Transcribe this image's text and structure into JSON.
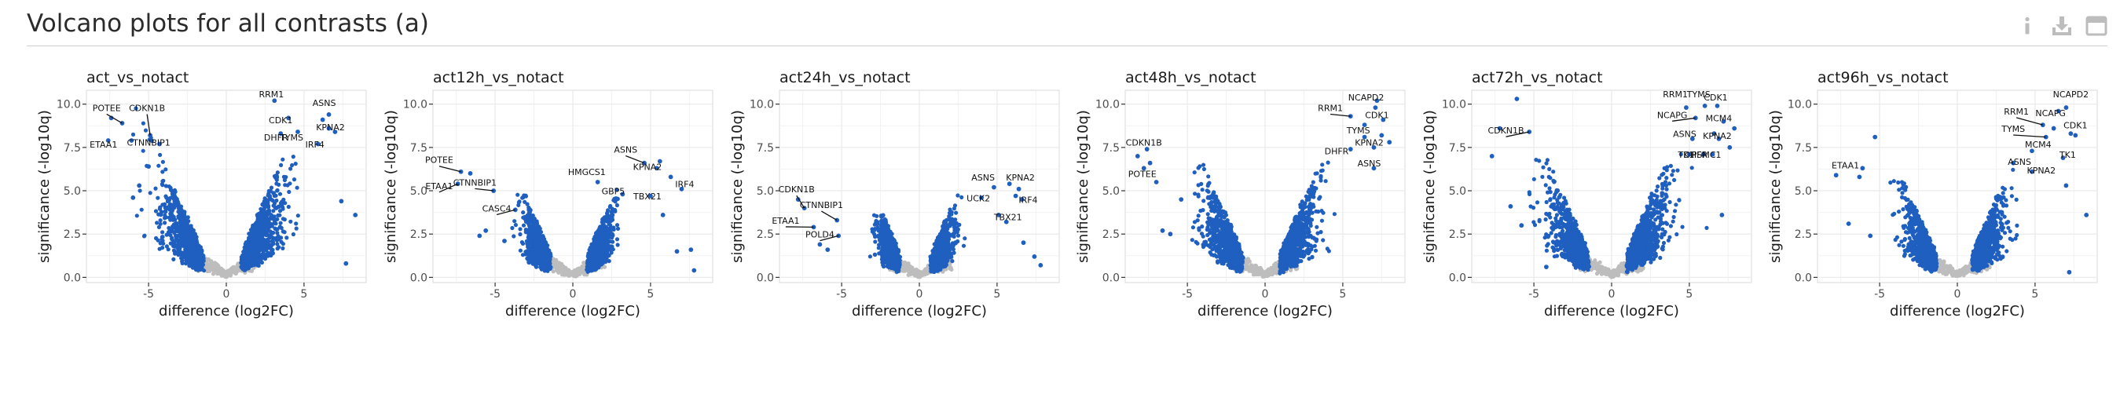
{
  "page": {
    "title": "Volcano plots for all contrasts (a)"
  },
  "toolbar": {
    "icons": [
      "info-icon",
      "download-icon",
      "maximize-icon"
    ],
    "icon_color": "#bdbdbd"
  },
  "colors": {
    "significant": "#1f5fbf",
    "non_significant": "#bdbdbd",
    "grid": "#ebebeb",
    "axis_text": "#4d4d4d"
  },
  "chart_data": [
    {
      "type": "scatter",
      "title": "act_vs_notact",
      "xlabel": "difference  (log2FC)",
      "ylabel": "significance  (-log10q)",
      "xlim": [
        -9,
        9
      ],
      "ylim": [
        -0.3,
        10.8
      ],
      "xticks": [
        -5,
        0,
        5
      ],
      "yticks": [
        0.0,
        2.5,
        5.0,
        7.5,
        10.0
      ],
      "xtick_labels": [
        "-5",
        "0",
        "5"
      ],
      "ytick_labels": [
        "0.0",
        "2.5",
        "5.0",
        "7.5",
        "10.0"
      ],
      "spread": 1.0,
      "hi_left": 10.1,
      "hi_right": 10.0,
      "lmin": -1.4,
      "rmin": 0.9,
      "labels": [
        {
          "text": "POTEE",
          "x": -6.7,
          "y": 8.9,
          "ax": -7.7,
          "ay": 9.6
        },
        {
          "text": "CDKN1B",
          "x": -4.9,
          "y": 8.2,
          "ax": -5.1,
          "ay": 9.6
        },
        {
          "text": "ETAA1",
          "x": -7.6,
          "y": 7.9,
          "ax": -7.9,
          "ay": 7.5
        },
        {
          "text": "CTNNBIP1",
          "x": -4.3,
          "y": 7.7,
          "ax": -5.0,
          "ay": 7.6
        },
        {
          "text": "RRM1",
          "x": 3.1,
          "y": 10.2,
          "ax": 2.9,
          "ay": 10.4
        },
        {
          "text": "ASNS",
          "x": 6.2,
          "y": 9.1,
          "ax": 6.3,
          "ay": 9.9
        },
        {
          "text": "CDK1",
          "x": 4.0,
          "y": 9.2,
          "ax": 3.5,
          "ay": 8.9
        },
        {
          "text": "DHFR",
          "x": 3.5,
          "y": 8.3,
          "ax": 3.2,
          "ay": 7.9
        },
        {
          "text": "TYMS",
          "x": 4.6,
          "y": 8.4,
          "ax": 4.2,
          "ay": 7.9
        },
        {
          "text": "KPNA2",
          "x": 6.6,
          "y": 8.6,
          "ax": 6.7,
          "ay": 8.5
        },
        {
          "text": "IRF4",
          "x": 5.9,
          "y": 7.7,
          "ax": 5.7,
          "ay": 7.5
        }
      ],
      "extras": [
        [
          -7.4,
          9.2
        ],
        [
          -6.1,
          7.9
        ],
        [
          -5.6,
          5.3
        ],
        [
          -6.0,
          4.6
        ],
        [
          -5.0,
          6.4
        ],
        [
          7.4,
          4.4
        ],
        [
          7.7,
          0.8
        ],
        [
          8.3,
          3.6
        ],
        [
          7.0,
          8.4
        ],
        [
          6.6,
          9.4
        ]
      ]
    },
    {
      "type": "scatter",
      "title": "act12h_vs_notact",
      "xlabel": "difference  (log2FC)",
      "ylabel": "significance  (-log10q)",
      "xlim": [
        -9,
        9
      ],
      "ylim": [
        -0.3,
        10.8
      ],
      "xticks": [
        -5,
        0,
        5
      ],
      "yticks": [
        0.0,
        2.5,
        5.0,
        7.5,
        10.0
      ],
      "xtick_labels": [
        "-5",
        "0",
        "5"
      ],
      "ytick_labels": [
        "0.0",
        "2.5",
        "5.0",
        "7.5",
        "10.0"
      ],
      "spread": 0.55,
      "hi_left": 4.8,
      "hi_right": 6.3,
      "lmin": -1.4,
      "rmin": 0.9,
      "labels": [
        {
          "text": "POTEE",
          "x": -7.2,
          "y": 6.1,
          "ax": -8.6,
          "ay": 6.6
        },
        {
          "text": "ETAA1",
          "x": -7.4,
          "y": 5.4,
          "ax": -8.6,
          "ay": 5.1
        },
        {
          "text": "CTNNBIP1",
          "x": -5.1,
          "y": 5.0,
          "ax": -6.3,
          "ay": 5.3
        },
        {
          "text": "CASC4",
          "x": -3.7,
          "y": 3.9,
          "ax": -4.9,
          "ay": 3.8
        },
        {
          "text": "HMGCS1",
          "x": 1.6,
          "y": 5.5,
          "ax": 0.9,
          "ay": 5.9
        },
        {
          "text": "ASNS",
          "x": 4.6,
          "y": 6.6,
          "ax": 3.4,
          "ay": 7.2
        },
        {
          "text": "KPNA2",
          "x": 5.4,
          "y": 6.3,
          "ax": 4.8,
          "ay": 6.2
        },
        {
          "text": "IRF4",
          "x": 7.0,
          "y": 5.1,
          "ax": 7.2,
          "ay": 5.2
        },
        {
          "text": "GBP5",
          "x": 3.2,
          "y": 4.8,
          "ax": 2.6,
          "ay": 4.8
        },
        {
          "text": "TBX21",
          "x": 5.0,
          "y": 4.7,
          "ax": 4.8,
          "ay": 4.5
        }
      ],
      "extras": [
        [
          -6.6,
          6.0
        ],
        [
          -5.6,
          2.7
        ],
        [
          -6.0,
          2.4
        ],
        [
          -4.4,
          2.1
        ],
        [
          5.6,
          6.7
        ],
        [
          6.3,
          5.8
        ],
        [
          6.7,
          1.5
        ],
        [
          7.6,
          1.6
        ],
        [
          5.8,
          3.6
        ],
        [
          7.8,
          0.4
        ]
      ]
    },
    {
      "type": "scatter",
      "title": "act24h_vs_notact",
      "xlabel": "difference  (log2FC)",
      "ylabel": "significance  (-log10q)",
      "xlim": [
        -9,
        9
      ],
      "ylim": [
        -0.3,
        10.8
      ],
      "xticks": [
        -5,
        0,
        5
      ],
      "yticks": [
        0.0,
        2.5,
        5.0,
        7.5,
        10.0
      ],
      "xtick_labels": [
        "-5",
        "0",
        "5"
      ],
      "ytick_labels": [
        "0.0",
        "2.5",
        "5.0",
        "7.5",
        "10.0"
      ],
      "spread": 0.45,
      "hi_left": 3.6,
      "hi_right": 5.6,
      "lmin": -1.2,
      "rmin": 0.7,
      "labels": [
        {
          "text": "CDKN1B",
          "x": -7.4,
          "y": 4.0,
          "ax": -7.9,
          "ay": 4.9
        },
        {
          "text": "CTNNBIP1",
          "x": -5.3,
          "y": 3.3,
          "ax": -6.3,
          "ay": 4.0
        },
        {
          "text": "ETAA1",
          "x": -6.8,
          "y": 2.9,
          "ax": -8.6,
          "ay": 3.1
        },
        {
          "text": "POLD4",
          "x": -5.2,
          "y": 2.4,
          "ax": -6.4,
          "ay": 2.3
        },
        {
          "text": "ASNS",
          "x": 4.8,
          "y": 5.2,
          "ax": 4.1,
          "ay": 5.6
        },
        {
          "text": "KPNA2",
          "x": 6.4,
          "y": 5.1,
          "ax": 6.5,
          "ay": 5.6
        },
        {
          "text": "UCK2",
          "x": 4.0,
          "y": 4.6,
          "ax": 3.8,
          "ay": 4.4
        },
        {
          "text": "IRF4",
          "x": 6.6,
          "y": 4.5,
          "ax": 7.0,
          "ay": 4.3
        },
        {
          "text": "TBX21",
          "x": 5.6,
          "y": 3.2,
          "ax": 5.7,
          "ay": 3.3
        }
      ],
      "extras": [
        [
          -7.8,
          4.5
        ],
        [
          -6.4,
          1.9
        ],
        [
          -5.9,
          1.6
        ],
        [
          5.8,
          5.4
        ],
        [
          6.2,
          4.7
        ],
        [
          6.7,
          2.0
        ],
        [
          7.4,
          1.2
        ],
        [
          7.8,
          0.7
        ],
        [
          5.1,
          3.6
        ]
      ]
    },
    {
      "type": "scatter",
      "title": "act48h_vs_notact",
      "xlabel": "difference  (log2FC)",
      "ylabel": "significance  (-log10q)",
      "xlim": [
        -9,
        9
      ],
      "ylim": [
        -0.3,
        10.8
      ],
      "xticks": [
        -5,
        0,
        5
      ],
      "yticks": [
        0.0,
        2.5,
        5.0,
        7.5,
        10.0
      ],
      "xtick_labels": [
        "-5",
        "0",
        "5"
      ],
      "ytick_labels": [
        "0.0",
        "2.5",
        "5.0",
        "7.5",
        "10.0"
      ],
      "spread": 0.85,
      "hi_left": 7.0,
      "hi_right": 9.0,
      "lmin": -1.4,
      "rmin": 0.9,
      "labels": [
        {
          "text": "NCAPD2",
          "x": 7.2,
          "y": 10.2,
          "ax": 6.5,
          "ay": 10.2
        },
        {
          "text": "CDK1",
          "x": 7.6,
          "y": 9.1,
          "ax": 7.2,
          "ay": 9.2
        },
        {
          "text": "RRM1",
          "x": 5.5,
          "y": 9.3,
          "ax": 4.2,
          "ay": 9.6
        },
        {
          "text": "TYMS",
          "x": 6.4,
          "y": 8.1,
          "ax": 6.0,
          "ay": 8.3
        },
        {
          "text": "KPNA2",
          "x": 7.0,
          "y": 7.5,
          "ax": 6.7,
          "ay": 7.6
        },
        {
          "text": "DHFR",
          "x": 5.5,
          "y": 7.4,
          "ax": 4.6,
          "ay": 7.1
        },
        {
          "text": "ASNS",
          "x": 7.0,
          "y": 6.3,
          "ax": 6.7,
          "ay": 6.4
        },
        {
          "text": "CDKN1B",
          "x": -7.6,
          "y": 7.4,
          "ax": -7.8,
          "ay": 7.6
        },
        {
          "text": "POTEE",
          "x": -7.8,
          "y": 6.3,
          "ax": -7.9,
          "ay": 5.8
        }
      ],
      "extras": [
        [
          -7.4,
          6.6
        ],
        [
          -8.2,
          7.0
        ],
        [
          -6.6,
          2.7
        ],
        [
          -6.1,
          2.5
        ],
        [
          -5.4,
          4.5
        ],
        [
          -7.0,
          5.5
        ],
        [
          7.5,
          8.2
        ],
        [
          8.0,
          7.8
        ],
        [
          7.1,
          9.8
        ],
        [
          6.4,
          8.8
        ]
      ]
    },
    {
      "type": "scatter",
      "title": "act72h_vs_notact",
      "xlabel": "difference  (log2FC)",
      "ylabel": "significance  (-log10q)",
      "xlim": [
        -9,
        9
      ],
      "ylim": [
        -0.3,
        10.8
      ],
      "xticks": [
        -5,
        0,
        5
      ],
      "yticks": [
        0.0,
        2.5,
        5.0,
        7.5,
        10.0
      ],
      "xtick_labels": [
        "-5",
        "0",
        "5"
      ],
      "ytick_labels": [
        "0.0",
        "2.5",
        "5.0",
        "7.5",
        "10.0"
      ],
      "spread": 0.95,
      "hi_left": 8.3,
      "hi_right": 9.6,
      "lmin": -1.4,
      "rmin": 0.9,
      "labels": [
        {
          "text": "CDKN1B",
          "x": -5.3,
          "y": 8.4,
          "ax": -6.8,
          "ay": 8.3
        },
        {
          "text": "RRM1",
          "x": 4.8,
          "y": 9.8,
          "ax": 4.1,
          "ay": 10.4
        },
        {
          "text": "TYMS",
          "x": 6.0,
          "y": 9.9,
          "ax": 5.6,
          "ay": 10.4
        },
        {
          "text": "CDK1",
          "x": 6.8,
          "y": 9.9,
          "ax": 6.7,
          "ay": 10.2
        },
        {
          "text": "NCAPG",
          "x": 5.4,
          "y": 9.2,
          "ax": 3.9,
          "ay": 9.2
        },
        {
          "text": "MCM4",
          "x": 7.2,
          "y": 9.0,
          "ax": 6.9,
          "ay": 9.0
        },
        {
          "text": "ASNS",
          "x": 5.2,
          "y": 8.0,
          "ax": 4.7,
          "ay": 8.1
        },
        {
          "text": "KPNA2",
          "x": 6.9,
          "y": 8.0,
          "ax": 6.8,
          "ay": 8.0
        },
        {
          "text": "TK1",
          "x": 5.0,
          "y": 7.1,
          "ax": 4.8,
          "ay": 6.9
        },
        {
          "text": "DHFR",
          "x": 5.9,
          "y": 7.1,
          "ax": 5.4,
          "ay": 6.9
        },
        {
          "text": "PSMC1",
          "x": 6.5,
          "y": 7.1,
          "ax": 6.1,
          "ay": 6.9
        }
      ],
      "extras": [
        [
          -6.1,
          10.3
        ],
        [
          -7.2,
          8.6
        ],
        [
          -7.7,
          7.0
        ],
        [
          -6.5,
          4.1
        ],
        [
          -5.8,
          3.0
        ],
        [
          -4.2,
          0.6
        ],
        [
          7.6,
          7.5
        ],
        [
          7.1,
          3.6
        ],
        [
          7.9,
          8.6
        ],
        [
          6.6,
          8.3
        ]
      ]
    },
    {
      "type": "scatter",
      "title": "act96h_vs_notact",
      "xlabel": "difference  (log2FC)",
      "ylabel": "significance  (-log10q)",
      "xlim": [
        -9,
        9
      ],
      "ylim": [
        -0.3,
        10.8
      ],
      "xticks": [
        -5,
        0,
        5
      ],
      "yticks": [
        0.0,
        2.5,
        5.0,
        7.5,
        10.0
      ],
      "xtick_labels": [
        "-5",
        "0",
        "5"
      ],
      "ytick_labels": [
        "0.0",
        "2.5",
        "5.0",
        "7.5",
        "10.0"
      ],
      "spread": 0.7,
      "hi_left": 6.5,
      "hi_right": 8.6,
      "lmin": -1.3,
      "rmin": 0.9,
      "labels": [
        {
          "text": "NCAPD2",
          "x": 7.0,
          "y": 9.8,
          "ax": 7.3,
          "ay": 10.4
        },
        {
          "text": "RRM1",
          "x": 5.5,
          "y": 8.8,
          "ax": 3.8,
          "ay": 9.4
        },
        {
          "text": "NCAPG",
          "x": 6.2,
          "y": 8.6,
          "ax": 6.0,
          "ay": 9.3
        },
        {
          "text": "TYMS",
          "x": 5.7,
          "y": 8.1,
          "ax": 3.6,
          "ay": 8.4
        },
        {
          "text": "CDK1",
          "x": 7.3,
          "y": 8.3,
          "ax": 7.6,
          "ay": 8.6
        },
        {
          "text": "MCM4",
          "x": 4.8,
          "y": 7.3,
          "ax": 5.2,
          "ay": 7.5
        },
        {
          "text": "TK1",
          "x": 6.8,
          "y": 6.9,
          "ax": 7.1,
          "ay": 6.9
        },
        {
          "text": "ASNS",
          "x": 3.6,
          "y": 6.6,
          "ax": 4.0,
          "ay": 6.5
        },
        {
          "text": "KPNA2",
          "x": 4.8,
          "y": 6.1,
          "ax": 5.4,
          "ay": 6.0
        },
        {
          "text": "ETAA1",
          "x": -6.1,
          "y": 6.3,
          "ax": -7.2,
          "ay": 6.3
        }
      ],
      "extras": [
        [
          -7.8,
          5.9
        ],
        [
          -6.3,
          5.8
        ],
        [
          -5.3,
          8.1
        ],
        [
          -7.0,
          3.1
        ],
        [
          -5.6,
          2.4
        ],
        [
          7.6,
          8.2
        ],
        [
          8.3,
          3.6
        ],
        [
          7.2,
          0.3
        ],
        [
          6.5,
          9.6
        ],
        [
          7.0,
          5.3
        ]
      ]
    }
  ]
}
